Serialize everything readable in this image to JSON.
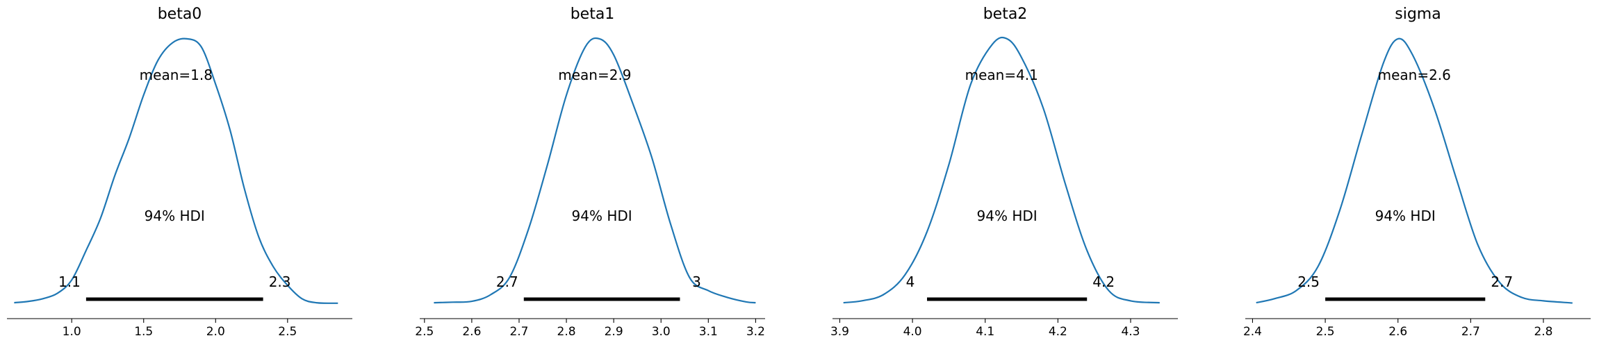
{
  "chart_data": [
    {
      "type": "line",
      "title": "beta0",
      "mean_label": "mean=1.8",
      "hdi_label": "94% HDI",
      "hdi": [
        1.1,
        2.33
      ],
      "hdi_labels": [
        "1.1",
        "2.3"
      ],
      "xlim": [
        0.55,
        2.95
      ],
      "xticks": [
        1.0,
        1.5,
        2.0,
        2.5
      ],
      "xtick_labels": [
        "1.0",
        "1.5",
        "2.0",
        "2.5"
      ],
      "color": "#1f77b4",
      "density": {
        "x": [
          0.6,
          0.7,
          0.8,
          0.9,
          1.0,
          1.1,
          1.2,
          1.3,
          1.4,
          1.5,
          1.6,
          1.7,
          1.8,
          1.9,
          2.0,
          2.1,
          2.2,
          2.3,
          2.4,
          2.5,
          2.6,
          2.7,
          2.85
        ],
        "y": [
          0.005,
          0.01,
          0.02,
          0.04,
          0.09,
          0.2,
          0.32,
          0.48,
          0.62,
          0.78,
          0.91,
          0.975,
          0.99,
          0.96,
          0.82,
          0.65,
          0.43,
          0.25,
          0.14,
          0.07,
          0.02,
          0.005,
          0.003
        ]
      }
    },
    {
      "type": "line",
      "title": "beta1",
      "mean_label": "mean=2.9",
      "hdi_label": "94% HDI",
      "hdi": [
        2.71,
        3.04
      ],
      "hdi_labels": [
        "2.7",
        "3"
      ],
      "xlim": [
        2.49,
        3.22
      ],
      "xticks": [
        2.5,
        2.6,
        2.7,
        2.8,
        2.9,
        3.0,
        3.1,
        3.2
      ],
      "xtick_labels": [
        "2.5",
        "2.6",
        "2.7",
        "2.8",
        "2.9",
        "3.0",
        "3.1",
        "3.2"
      ],
      "color": "#1f77b4",
      "density": {
        "x": [
          2.52,
          2.56,
          2.6,
          2.64,
          2.68,
          2.72,
          2.76,
          2.8,
          2.84,
          2.87,
          2.9,
          2.94,
          2.98,
          3.02,
          3.06,
          3.1,
          3.14,
          3.18,
          3.2
        ],
        "y": [
          0.005,
          0.007,
          0.01,
          0.035,
          0.1,
          0.28,
          0.52,
          0.78,
          0.96,
          0.99,
          0.93,
          0.75,
          0.55,
          0.3,
          0.1,
          0.05,
          0.025,
          0.008,
          0.005
        ]
      }
    },
    {
      "type": "line",
      "title": "beta2",
      "mean_label": "mean=4.1",
      "hdi_label": "94% HDI",
      "hdi": [
        4.02,
        4.24
      ],
      "hdi_labels": [
        "4",
        "4.2"
      ],
      "xlim": [
        3.89,
        4.365
      ],
      "xticks": [
        3.9,
        4.0,
        4.1,
        4.2,
        4.3
      ],
      "xtick_labels": [
        "3.9",
        "4.0",
        "4.1",
        "4.2",
        "4.3"
      ],
      "color": "#1f77b4",
      "density": {
        "x": [
          3.905,
          3.93,
          3.96,
          3.99,
          4.02,
          4.05,
          4.08,
          4.11,
          4.13,
          4.15,
          4.18,
          4.21,
          4.24,
          4.27,
          4.3,
          4.34
        ],
        "y": [
          0.005,
          0.012,
          0.035,
          0.11,
          0.27,
          0.52,
          0.82,
          0.97,
          0.99,
          0.92,
          0.73,
          0.45,
          0.2,
          0.05,
          0.012,
          0.005
        ]
      }
    },
    {
      "type": "line",
      "title": "sigma",
      "mean_label": "mean=2.6",
      "hdi_label": "94% HDI",
      "hdi": [
        2.5,
        2.72
      ],
      "hdi_labels": [
        "2.5",
        "2.7"
      ],
      "xlim": [
        2.39,
        2.865
      ],
      "xticks": [
        2.4,
        2.5,
        2.6,
        2.7,
        2.8
      ],
      "xtick_labels": [
        "2.4",
        "2.5",
        "2.6",
        "2.7",
        "2.8"
      ],
      "color": "#1f77b4",
      "density": {
        "x": [
          2.405,
          2.43,
          2.46,
          2.49,
          2.52,
          2.55,
          2.58,
          2.6,
          2.62,
          2.65,
          2.68,
          2.71,
          2.74,
          2.77,
          2.8,
          2.84
        ],
        "y": [
          0.005,
          0.02,
          0.05,
          0.14,
          0.35,
          0.63,
          0.9,
          0.99,
          0.93,
          0.73,
          0.47,
          0.22,
          0.08,
          0.025,
          0.012,
          0.004
        ]
      }
    }
  ]
}
